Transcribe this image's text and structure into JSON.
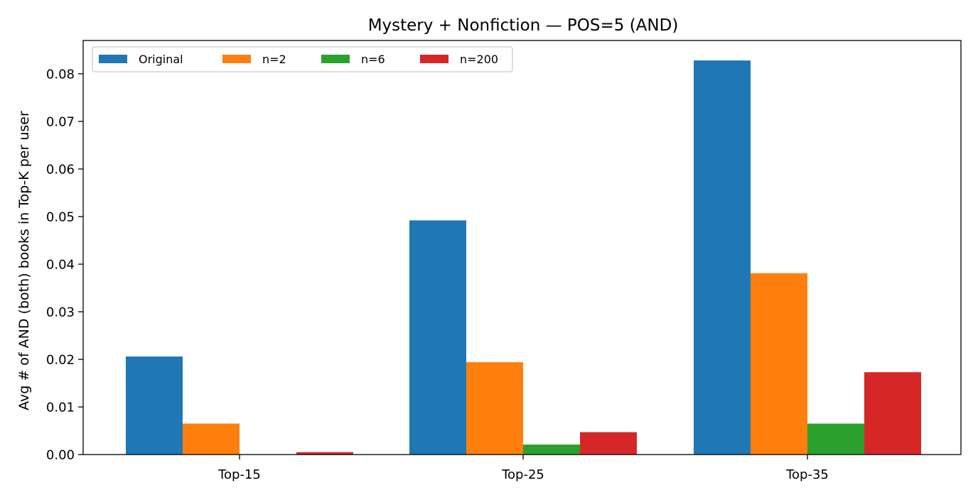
{
  "chart_data": {
    "type": "bar",
    "title": "Mystery + Nonfiction — POS=5 (AND)",
    "xlabel": "",
    "ylabel": "Avg # of AND (both) books in Top-K per user",
    "categories": [
      "Top-15",
      "Top-25",
      "Top-35"
    ],
    "ylim": [
      0,
      0.087
    ],
    "yticks": [
      0.0,
      0.01,
      0.02,
      0.03,
      0.04,
      0.05,
      0.06,
      0.07,
      0.08
    ],
    "ytick_labels": [
      "0.00",
      "0.01",
      "0.02",
      "0.03",
      "0.04",
      "0.05",
      "0.06",
      "0.07",
      "0.08"
    ],
    "grid": false,
    "legend_position": "top-left",
    "series": [
      {
        "name": "Original",
        "color": "#1f77b4",
        "values": [
          0.0206,
          0.0492,
          0.0828
        ]
      },
      {
        "name": "n=2",
        "color": "#ff7f0e",
        "values": [
          0.0065,
          0.0194,
          0.0381
        ]
      },
      {
        "name": "n=6",
        "color": "#2ca02c",
        "values": [
          0.0,
          0.0021,
          0.0065
        ]
      },
      {
        "name": "n=200",
        "color": "#d62728",
        "values": [
          0.0005,
          0.0047,
          0.0173
        ]
      }
    ]
  }
}
